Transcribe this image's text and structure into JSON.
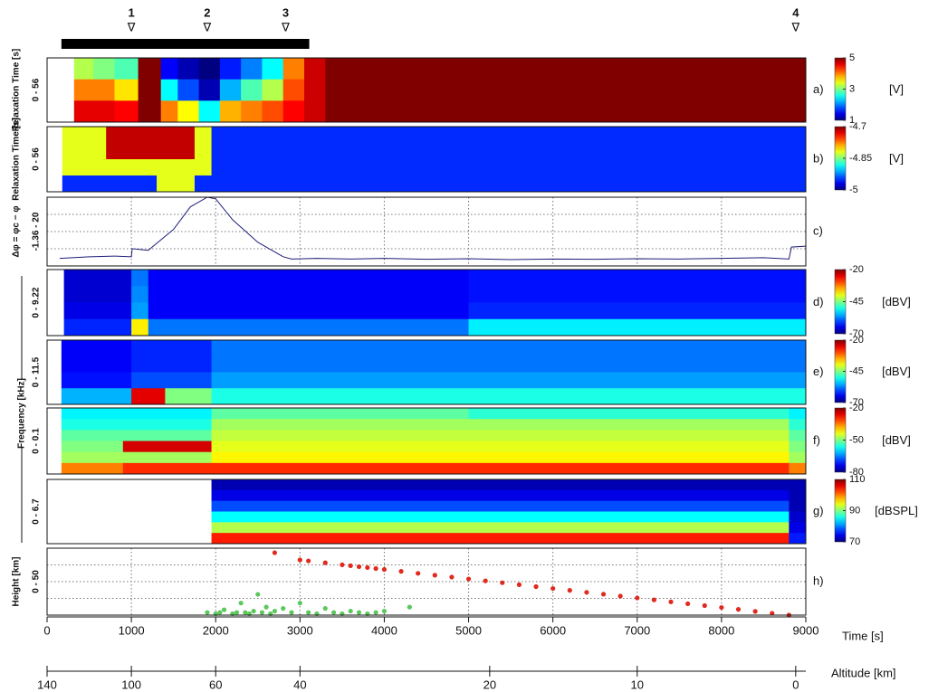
{
  "events": {
    "marker_symbol": "∇",
    "items": [
      {
        "label": "1",
        "time": 1000
      },
      {
        "label": "2",
        "time": 1900
      },
      {
        "label": "3",
        "time": 2830
      },
      {
        "label": "4",
        "time": 8880
      }
    ],
    "bar": [
      170,
      3110
    ]
  },
  "frequency_label": "Frequency [kHz]",
  "time_axis": {
    "label": "Time [s]",
    "xlim": [
      0,
      9000
    ],
    "xticks": [
      0,
      1000,
      2000,
      3000,
      4000,
      5000,
      6000,
      7000,
      8000,
      9000
    ]
  },
  "altitude_axis": {
    "label": "Altitude [km]",
    "ticks": [
      {
        "value": 140,
        "time": 0
      },
      {
        "value": 100,
        "time": 1000
      },
      {
        "value": 60,
        "time": 2000
      },
      {
        "value": 40,
        "time": 3000
      },
      {
        "value": 20,
        "time": 5250
      },
      {
        "value": 10,
        "time": 7000
      },
      {
        "value": 0,
        "time": 8880
      }
    ]
  },
  "chart_data": [
    {
      "type": "heatmap",
      "panel_label": "a)",
      "ylabel": "Relaxation Time [s]",
      "range_label": "0 - 56",
      "unit": "[V]",
      "clim": [
        1,
        5
      ],
      "cticks": [
        5,
        3,
        1
      ],
      "time_edges": [
        320,
        550,
        800,
        1080,
        1350,
        1550,
        1800,
        2050,
        2300,
        2550,
        2800,
        3050,
        3300,
        9000
      ],
      "values": [
        [
          3.2,
          3.0,
          2.8,
          5,
          1.5,
          1.2,
          1.0,
          1.6,
          2.0,
          2.5,
          4.0,
          4.7,
          5
        ],
        [
          4.0,
          4.0,
          3.6,
          5,
          2.5,
          1.8,
          1.2,
          2.2,
          2.8,
          3.2,
          4.2,
          4.7,
          5
        ],
        [
          4.6,
          4.6,
          4.5,
          5,
          4.0,
          3.5,
          2.5,
          3.8,
          4.0,
          4.2,
          4.5,
          4.7,
          5
        ]
      ]
    },
    {
      "type": "heatmap",
      "panel_label": "b)",
      "ylabel": "Relaxation Time [s]",
      "range_label": "0 - 56",
      "unit": "[V]",
      "clim": [
        -5,
        -4.7
      ],
      "cticks": [
        -4.7,
        -4.85,
        -5
      ],
      "time_edges": [
        180,
        700,
        1300,
        1750,
        1950,
        9000
      ],
      "values": [
        [
          -4.82,
          -4.72,
          -4.72,
          -4.82,
          -4.95
        ],
        [
          -4.82,
          -4.72,
          -4.72,
          -4.82,
          -4.95
        ],
        [
          -4.82,
          -4.82,
          -4.82,
          -4.82,
          -4.95
        ],
        [
          -4.95,
          -4.95,
          -4.82,
          -4.95,
          -4.95
        ]
      ]
    },
    {
      "type": "line",
      "panel_label": "c)",
      "ylabel": "Δφ = φc − φ",
      "range_label": "-1.36 - 20",
      "color": "#1c1c7a",
      "ylim": [
        -1.36,
        20
      ],
      "x": [
        150,
        500,
        800,
        1000,
        1010,
        1200,
        1500,
        1700,
        1900,
        2000,
        2200,
        2500,
        2800,
        2900,
        3200,
        3600,
        4000,
        4500,
        5000,
        5500,
        6000,
        6500,
        7000,
        7500,
        8000,
        8500,
        8800,
        8830,
        9000
      ],
      "values": [
        1.0,
        1.5,
        1.7,
        1.5,
        4.0,
        3.5,
        10,
        17,
        20,
        19.5,
        13,
        6,
        1.5,
        0.8,
        1.0,
        0.8,
        1.0,
        0.7,
        0.9,
        0.6,
        0.8,
        0.7,
        0.9,
        0.8,
        1.0,
        1.2,
        0.8,
        4.5,
        4.8
      ]
    },
    {
      "type": "heatmap",
      "panel_label": "d)",
      "range_label": "0 - 9.22",
      "unit": "[dBV]",
      "clim": [
        -70,
        -20
      ],
      "cticks": [
        -20,
        -45,
        -70
      ],
      "time_edges": [
        200,
        1000,
        1200,
        5000,
        9000
      ],
      "values": [
        [
          -66,
          -58,
          -64,
          -63
        ],
        [
          -66,
          -57,
          -64,
          -63
        ],
        [
          -65,
          -56,
          -64,
          -62
        ],
        [
          -62,
          -38,
          -58,
          -52
        ]
      ]
    },
    {
      "type": "heatmap",
      "panel_label": "e)",
      "range_label": "0 - 11.5",
      "unit": "[dBV]",
      "clim": [
        -70,
        -20
      ],
      "cticks": [
        -20,
        -45,
        -70
      ],
      "time_edges": [
        170,
        1000,
        1400,
        1950,
        9000
      ],
      "values": [
        [
          -64,
          -62,
          -62,
          -58
        ],
        [
          -64,
          -62,
          -62,
          -58
        ],
        [
          -63,
          -60,
          -60,
          -56
        ],
        [
          -55,
          -25,
          -45,
          -50
        ]
      ]
    },
    {
      "type": "heatmap",
      "panel_label": "f)",
      "range_label": "0 - 0.1",
      "unit": "[dBV]",
      "clim": [
        -80,
        -20
      ],
      "cticks": [
        -20,
        -50,
        -80
      ],
      "time_edges": [
        170,
        900,
        1950,
        5000,
        8800,
        9000
      ],
      "values": [
        [
          -58,
          -58,
          -52,
          -55,
          -58
        ],
        [
          -56,
          -56,
          -48,
          -48,
          -55
        ],
        [
          -52,
          -52,
          -46,
          -46,
          -52
        ],
        [
          -50,
          -25,
          -44,
          -44,
          -50
        ],
        [
          -48,
          -48,
          -42,
          -42,
          -48
        ],
        [
          -35,
          -30,
          -30,
          -30,
          -35
        ]
      ]
    },
    {
      "type": "heatmap",
      "panel_label": "g)",
      "range_label": "0 - 6.7",
      "unit": "[dBSPL]",
      "clim": [
        70,
        110
      ],
      "cticks": [
        110,
        90,
        70
      ],
      "time_edges": [
        1950,
        8800,
        9000
      ],
      "values": [
        [
          72,
          72
        ],
        [
          74,
          72
        ],
        [
          78,
          72
        ],
        [
          85,
          73
        ],
        [
          92,
          74
        ],
        [
          104,
          76
        ]
      ]
    },
    {
      "type": "scatter",
      "panel_label": "h)",
      "ylabel": "Height [km]",
      "range_label": "0 - 50",
      "ylim": [
        0,
        50
      ],
      "series": [
        {
          "color": "#e02a1e",
          "x": [
            2700,
            3000,
            3100,
            3300,
            3500,
            3600,
            3700,
            3800,
            3900,
            4000,
            4200,
            4400,
            4600,
            4800,
            5000,
            5200,
            5400,
            5600,
            5800,
            6000,
            6200,
            6400,
            6600,
            6800,
            7000,
            7200,
            7400,
            7600,
            7800,
            8000,
            8200,
            8400,
            8600,
            8800
          ],
          "values": [
            46.6,
            41.2,
            40.5,
            39.1,
            37.6,
            36.9,
            36.2,
            35.5,
            34.8,
            34.1,
            32.7,
            31.2,
            29.8,
            28.4,
            27.0,
            25.6,
            24.2,
            22.7,
            21.3,
            19.9,
            18.5,
            17.0,
            15.6,
            14.2,
            12.8,
            11.4,
            9.9,
            8.5,
            7.1,
            5.7,
            4.3,
            2.8,
            1.4,
            0.0
          ]
        },
        {
          "color": "#5cc85c",
          "x": [
            1900,
            2000,
            2050,
            2100,
            2200,
            2250,
            2300,
            2350,
            2400,
            2450,
            2500,
            2550,
            2600,
            2650,
            2700,
            2800,
            2900,
            3000,
            3100,
            3200,
            3300,
            3400,
            3500,
            3600,
            3700,
            3800,
            3900,
            4000,
            4300
          ],
          "values": [
            2,
            1,
            2,
            4,
            1,
            2,
            9,
            2,
            1,
            3,
            15.5,
            2,
            6,
            1,
            3,
            5,
            2,
            9,
            2,
            1,
            5,
            2,
            1,
            3,
            2,
            1,
            2,
            3,
            6
          ]
        }
      ]
    }
  ]
}
